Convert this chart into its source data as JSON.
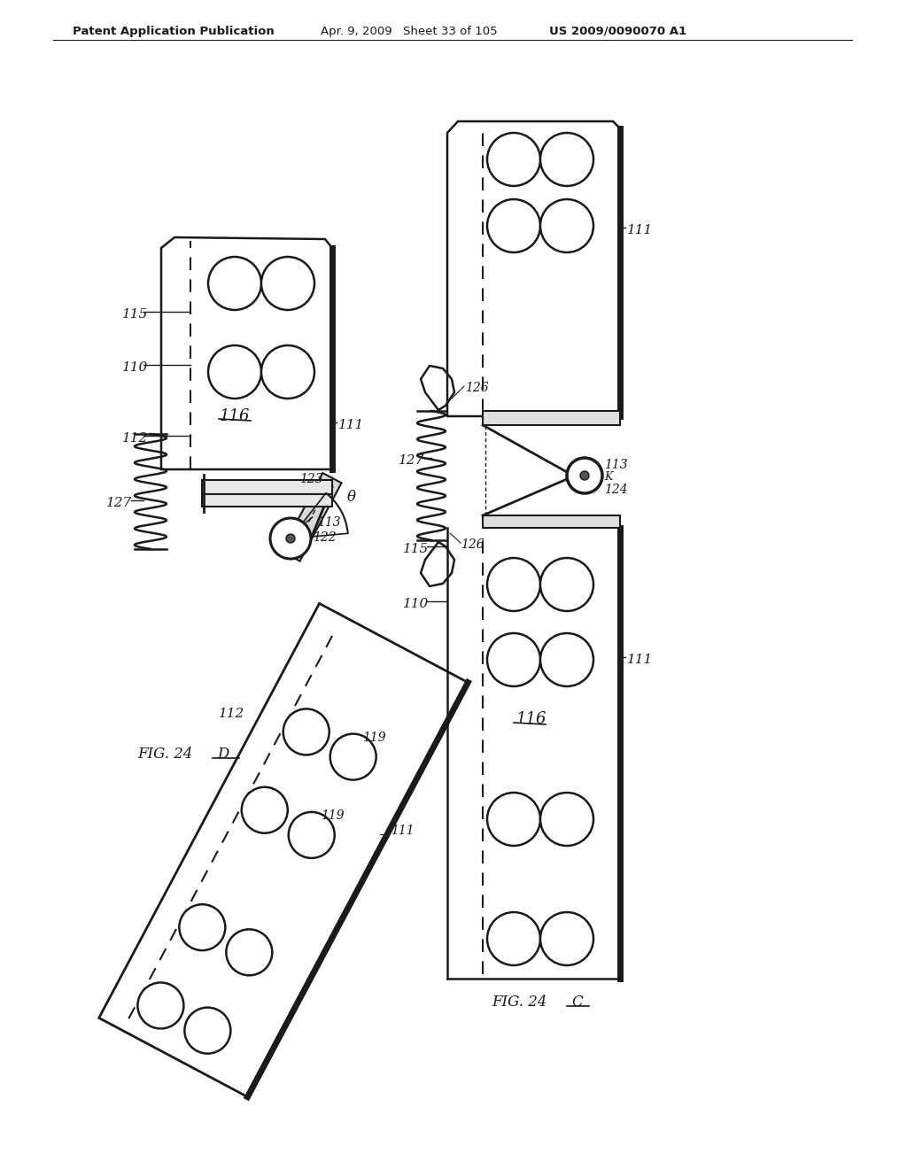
{
  "bg_color": "#ffffff",
  "header_text": "Patent Application Publication",
  "header_date": "Apr. 9, 2009",
  "header_sheet": "Sheet 33 of 105",
  "header_patent": "US 2009/0090070 A1",
  "fig_left_label": "FIG. 24D",
  "fig_right_label": "FIG. 24C",
  "text_color": "#1a1a1a",
  "line_color": "#1a1a1a"
}
